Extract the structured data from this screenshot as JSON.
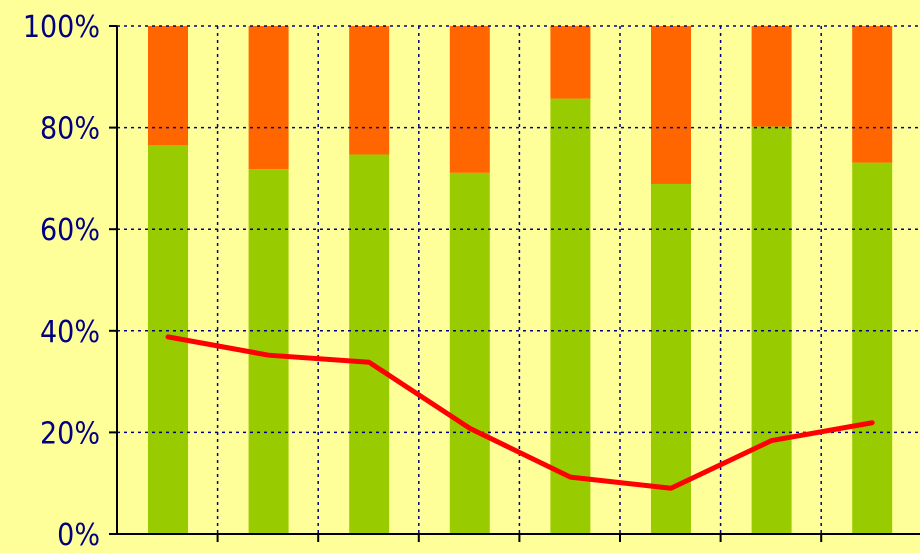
{
  "chart_data": {
    "type": "bar",
    "stacked": true,
    "categories": [
      "",
      "",
      "",
      "",
      "",
      "",
      "",
      ""
    ],
    "series": [
      {
        "values": [
          76.5,
          71.8,
          74.7,
          71.1,
          85.7,
          68.9,
          80.2,
          73.1
        ],
        "color": "#99cc00"
      },
      {
        "values": [
          23.5,
          28.2,
          25.3,
          28.9,
          14.3,
          31.1,
          19.8,
          26.9
        ],
        "color": "#ff6600"
      }
    ],
    "line_series": [
      {
        "values": [
          38.8,
          35.2,
          33.8,
          20.8,
          11.2,
          9.0,
          18.4,
          21.9
        ],
        "color": "#ff0000"
      }
    ],
    "ylim": [
      0,
      100
    ],
    "yticks": [
      "0%",
      "20%",
      "40%",
      "60%",
      "80%",
      "100%"
    ],
    "grid": true,
    "background": "#ffff99",
    "grid_color": "#000080",
    "axis_color": "#000000",
    "tick_label_color": "#000080",
    "xlabel": "",
    "ylabel": ""
  }
}
